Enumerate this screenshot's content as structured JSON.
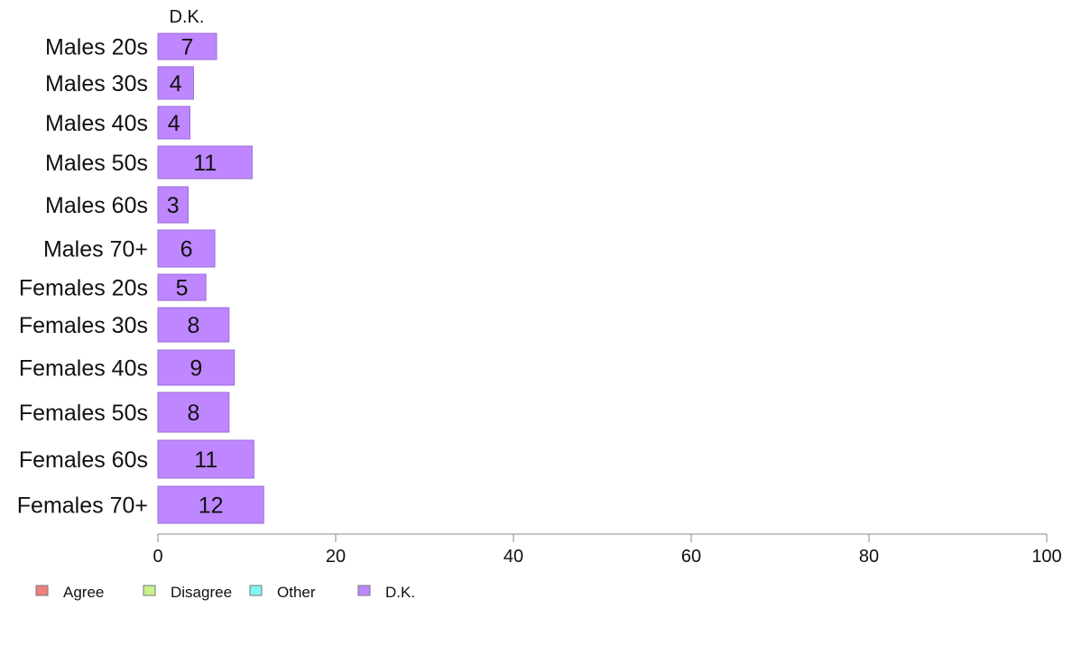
{
  "chart_data": {
    "type": "bar",
    "orientation": "horizontal",
    "stacked": true,
    "categories": [
      "Males 20s",
      "Males 30s",
      "Males 40s",
      "Males 50s",
      "Males 60s",
      "Males 70+",
      "Females 20s",
      "Females 30s",
      "Females 40s",
      "Females 50s",
      "Females 60s",
      "Females 70+"
    ],
    "series": [
      {
        "name": "Agree",
        "color": "#f08080",
        "values": [
          0,
          0,
          0,
          0,
          0,
          0,
          0,
          0,
          0,
          0,
          0,
          0
        ]
      },
      {
        "name": "Disagree",
        "color": "#c8f08c",
        "values": [
          0,
          0,
          0,
          0,
          0,
          0,
          0,
          0,
          0,
          0,
          0,
          0
        ]
      },
      {
        "name": "Other",
        "color": "#80f8f0",
        "values": [
          0,
          0,
          0,
          0,
          0,
          0,
          0,
          0,
          0,
          0,
          0,
          0
        ]
      },
      {
        "name": "D.K.",
        "color": "#bf87ff",
        "values": [
          6.6,
          4.0,
          3.6,
          10.6,
          3.4,
          6.4,
          5.4,
          8.0,
          8.6,
          8.0,
          10.8,
          11.9
        ],
        "labels": [
          "7",
          "4",
          "4",
          "11",
          "3",
          "6",
          "5",
          "8",
          "9",
          "8",
          "11",
          "12"
        ]
      }
    ],
    "column_header": "D.K.",
    "xlim": [
      0,
      100
    ],
    "xticks": [
      "0",
      "20",
      "40",
      "60",
      "80",
      "100"
    ],
    "title": "",
    "xlabel": "",
    "ylabel": "",
    "grid": false,
    "legend_placement": "bottom-left"
  }
}
